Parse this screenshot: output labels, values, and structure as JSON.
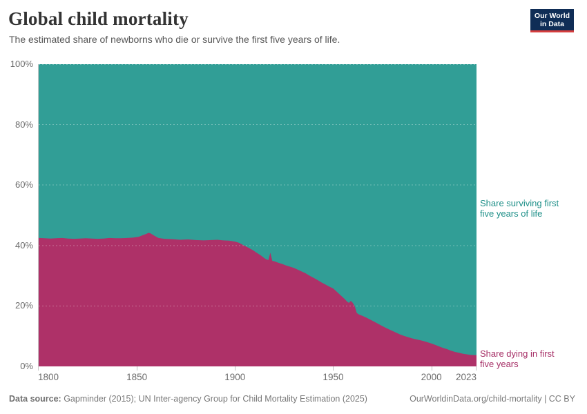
{
  "header": {
    "title": "Global child mortality",
    "subtitle": "The estimated share of newborns who die or survive the first five years of life.",
    "logo": {
      "line1": "Our World",
      "line2": "in Data",
      "bg_color": "#0f2d56",
      "bar_color": "#d63e3e"
    }
  },
  "chart_data": {
    "type": "area",
    "stacked": true,
    "title": "Global child mortality",
    "x_range": [
      1800,
      2023
    ],
    "y_range_percent": [
      0,
      100
    ],
    "x_ticks": [
      "1800",
      "1850",
      "1900",
      "1950",
      "2000",
      "2023"
    ],
    "y_ticks": [
      "0%",
      "20%",
      "40%",
      "60%",
      "80%",
      "100%"
    ],
    "grid": "dashed-light",
    "series": [
      {
        "name": "Share dying in first five years",
        "color": "#ae3168",
        "points": [
          [
            1800,
            42.5
          ],
          [
            1803,
            42.4
          ],
          [
            1806,
            42.3
          ],
          [
            1809,
            42.4
          ],
          [
            1812,
            42.5
          ],
          [
            1815,
            42.3
          ],
          [
            1818,
            42.2
          ],
          [
            1821,
            42.3
          ],
          [
            1824,
            42.4
          ],
          [
            1827,
            42.3
          ],
          [
            1830,
            42.2
          ],
          [
            1833,
            42.3
          ],
          [
            1836,
            42.5
          ],
          [
            1839,
            42.4
          ],
          [
            1842,
            42.4
          ],
          [
            1845,
            42.5
          ],
          [
            1848,
            42.6
          ],
          [
            1851,
            42.9
          ],
          [
            1853,
            43.4
          ],
          [
            1855,
            43.9
          ],
          [
            1856,
            44.2
          ],
          [
            1857,
            44.0
          ],
          [
            1859,
            43.2
          ],
          [
            1861,
            42.5
          ],
          [
            1864,
            42.2
          ],
          [
            1868,
            42.1
          ],
          [
            1872,
            41.9
          ],
          [
            1876,
            42.0
          ],
          [
            1880,
            41.8
          ],
          [
            1884,
            41.7
          ],
          [
            1888,
            41.8
          ],
          [
            1891,
            41.9
          ],
          [
            1894,
            41.7
          ],
          [
            1897,
            41.6
          ],
          [
            1900,
            41.3
          ],
          [
            1902,
            40.9
          ],
          [
            1904,
            40.2
          ],
          [
            1907,
            39.2
          ],
          [
            1909,
            38.5
          ],
          [
            1911,
            37.6
          ],
          [
            1913,
            36.8
          ],
          [
            1915,
            35.8
          ],
          [
            1916,
            35.4
          ],
          [
            1917,
            35.2
          ],
          [
            1918,
            37.6
          ],
          [
            1919,
            34.9
          ],
          [
            1920,
            34.8
          ],
          [
            1922,
            34.3
          ],
          [
            1924,
            33.9
          ],
          [
            1926,
            33.4
          ],
          [
            1928,
            33.0
          ],
          [
            1930,
            32.6
          ],
          [
            1932,
            32.0
          ],
          [
            1934,
            31.4
          ],
          [
            1936,
            30.8
          ],
          [
            1938,
            30.0
          ],
          [
            1940,
            29.3
          ],
          [
            1942,
            28.6
          ],
          [
            1944,
            27.8
          ],
          [
            1946,
            27.1
          ],
          [
            1948,
            26.4
          ],
          [
            1950,
            25.8
          ],
          [
            1952,
            24.6
          ],
          [
            1954,
            23.4
          ],
          [
            1956,
            22.2
          ],
          [
            1957,
            21.5
          ],
          [
            1958,
            21.0
          ],
          [
            1959,
            21.7
          ],
          [
            1960,
            21.0
          ],
          [
            1961,
            19.9
          ],
          [
            1962,
            17.7
          ],
          [
            1963,
            17.2
          ],
          [
            1965,
            16.7
          ],
          [
            1967,
            16.1
          ],
          [
            1970,
            15.1
          ],
          [
            1972,
            14.4
          ],
          [
            1974,
            13.7
          ],
          [
            1976,
            13.0
          ],
          [
            1978,
            12.4
          ],
          [
            1980,
            11.8
          ],
          [
            1982,
            11.2
          ],
          [
            1984,
            10.6
          ],
          [
            1986,
            10.1
          ],
          [
            1988,
            9.7
          ],
          [
            1990,
            9.3
          ],
          [
            1992,
            9.0
          ],
          [
            1994,
            8.7
          ],
          [
            1996,
            8.4
          ],
          [
            1998,
            8.0
          ],
          [
            2000,
            7.6
          ],
          [
            2002,
            7.1
          ],
          [
            2004,
            6.6
          ],
          [
            2006,
            6.1
          ],
          [
            2008,
            5.7
          ],
          [
            2010,
            5.2
          ],
          [
            2012,
            4.8
          ],
          [
            2014,
            4.5
          ],
          [
            2016,
            4.2
          ],
          [
            2018,
            4.0
          ],
          [
            2020,
            3.8
          ],
          [
            2023,
            3.7
          ]
        ]
      },
      {
        "name": "Share surviving first five years of life",
        "color": "#319e96",
        "derived": "100 minus dying share (stacked remainder)"
      }
    ]
  },
  "annotations": {
    "surviving": {
      "line1": "Share surviving first",
      "line2": "five years of life",
      "color": "#1d8f88"
    },
    "dying": {
      "line1": "Share dying in first",
      "line2": "five years",
      "color": "#a52d65"
    }
  },
  "footer": {
    "source_label": "Data source:",
    "source_text": " Gapminder (2015); UN Inter-agency Group for Child Mortality Estimation (2025)",
    "link_text": "OurWorldinData.org/child-mortality | CC BY"
  }
}
